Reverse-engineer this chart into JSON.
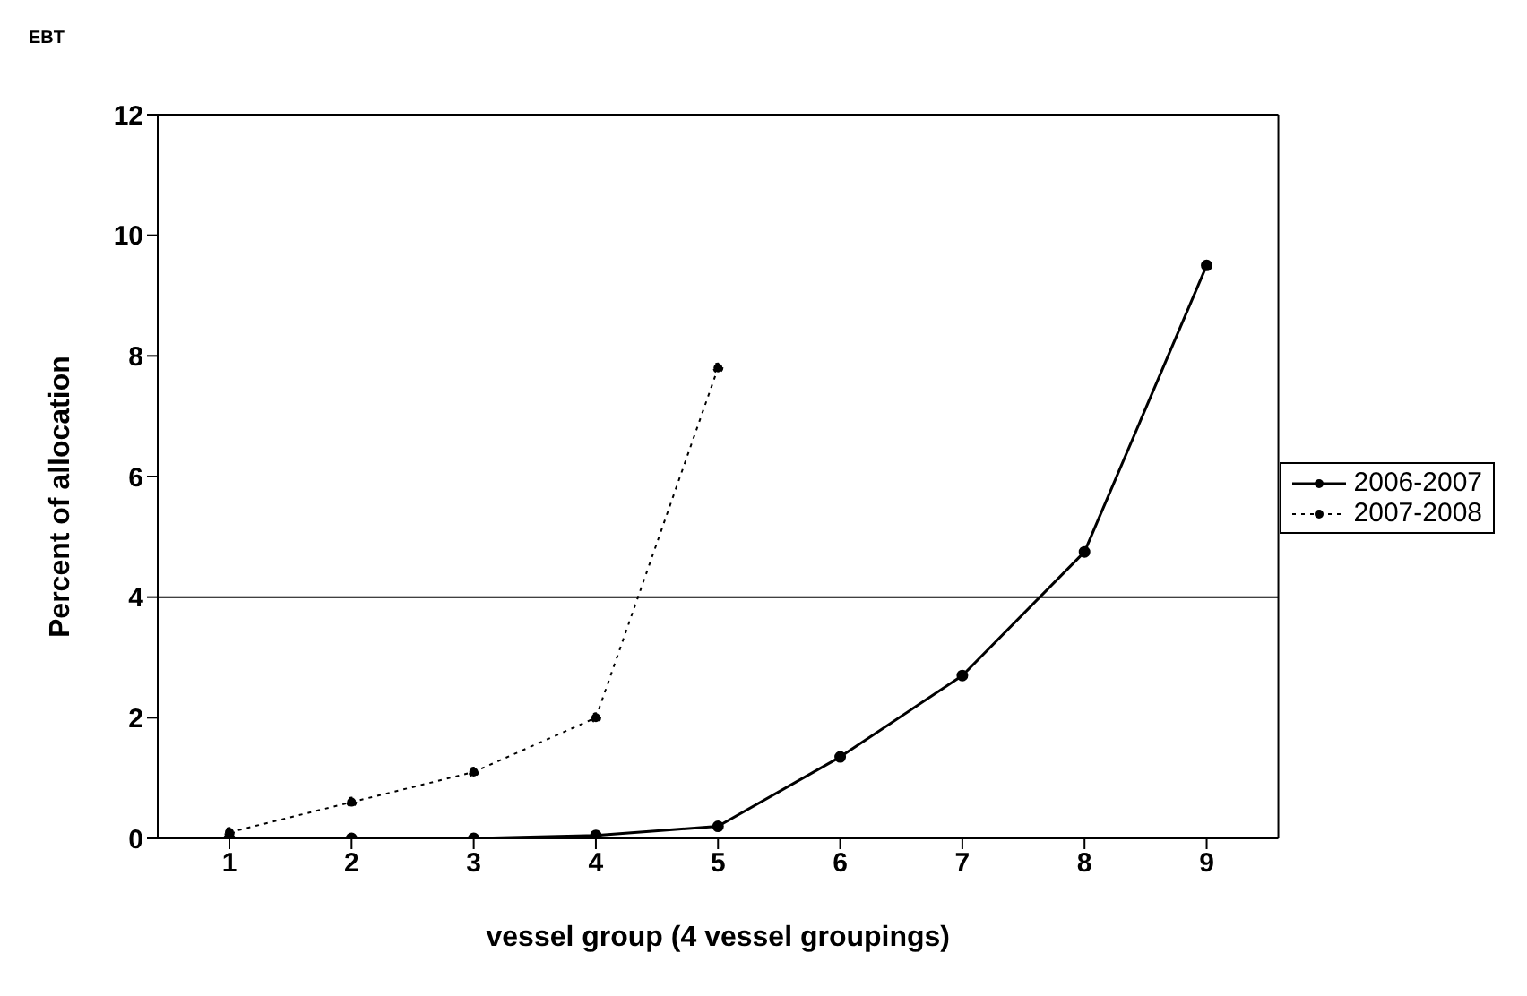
{
  "chart_data": {
    "type": "line",
    "title": "EBT",
    "xlabel": "vessel group (4 vessel groupings)",
    "ylabel": "Percent of allocation",
    "categories": [
      "1",
      "2",
      "3",
      "4",
      "5",
      "6",
      "7",
      "8",
      "9"
    ],
    "series": [
      {
        "name": "2006-2007",
        "color": "#000000",
        "values": [
          0,
          0,
          0,
          0.05,
          0.2,
          1.35,
          2.7,
          4.75,
          9.5
        ],
        "line_style": "solid"
      },
      {
        "name": "2007-2008",
        "color": "#000000",
        "values": [
          0.1,
          0.6,
          1.1,
          2.0,
          7.8,
          null,
          null,
          null,
          null
        ],
        "line_style": "dotted"
      }
    ],
    "ylim": [
      0,
      12
    ],
    "yticks": [
      0,
      2,
      4,
      6,
      8,
      10,
      12
    ],
    "ref_lines": [
      {
        "axis": "y",
        "value": 4,
        "color": "#000000"
      }
    ],
    "legend": "right",
    "marker": "circle"
  }
}
